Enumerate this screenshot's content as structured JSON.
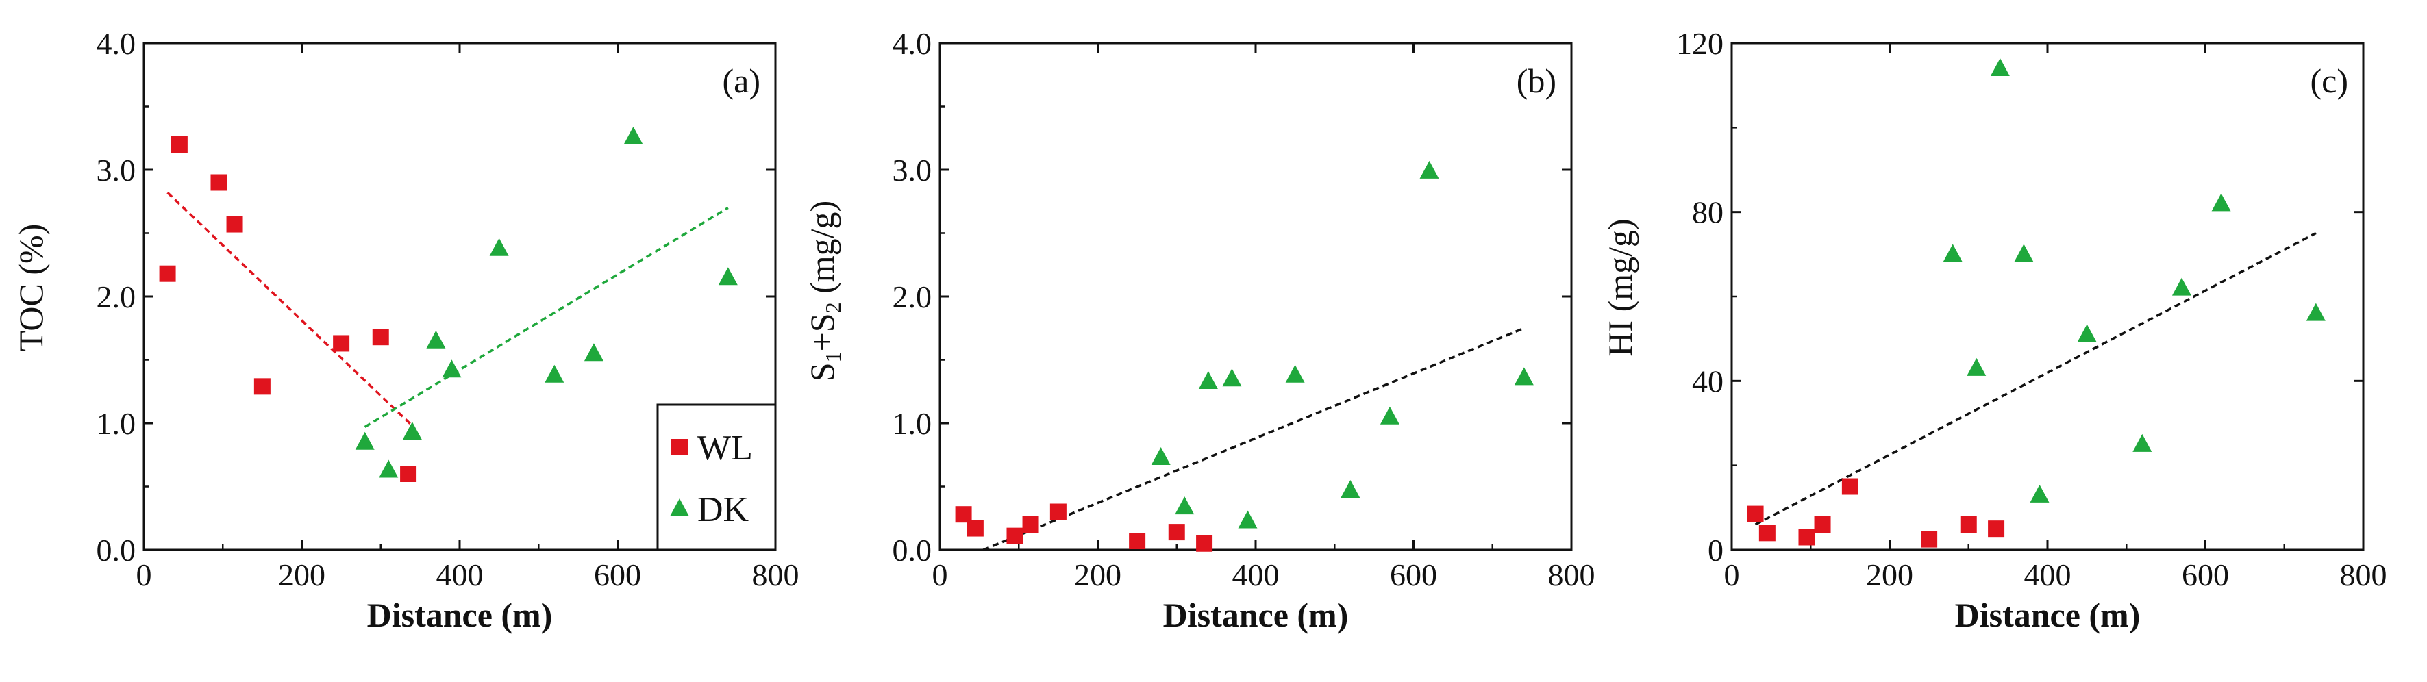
{
  "chart_data": [
    {
      "type": "scatter",
      "panel_label": "(a)",
      "xlabel": "Distance (m)",
      "ylabel": "TOC (%)",
      "xlim": [
        0,
        800
      ],
      "ylim": [
        0,
        4.0
      ],
      "xticks": [
        "0",
        "200",
        "400",
        "600",
        "800"
      ],
      "yticks": [
        "0.0",
        "1.0",
        "2.0",
        "3.0",
        "4.0"
      ],
      "legend": {
        "position": "bottom-right",
        "entries": [
          "WL",
          "DK"
        ]
      },
      "series": [
        {
          "name": "WL",
          "marker": "square",
          "color": "#e0141e",
          "x": [
            30,
            45,
            95,
            115,
            150,
            250,
            300,
            335
          ],
          "y": [
            2.18,
            3.2,
            2.9,
            2.57,
            1.29,
            1.63,
            1.68,
            0.6
          ]
        },
        {
          "name": "DK",
          "marker": "triangle",
          "color": "#1fa83c",
          "x": [
            280,
            310,
            340,
            370,
            390,
            450,
            520,
            570,
            620,
            740
          ],
          "y": [
            0.85,
            0.63,
            0.93,
            1.65,
            1.42,
            2.38,
            1.38,
            1.55,
            3.26,
            2.15
          ]
        }
      ],
      "trendlines": [
        {
          "series": "WL",
          "color": "#e0141e",
          "x": [
            30,
            340
          ],
          "y": [
            2.82,
            0.98
          ]
        },
        {
          "series": "DK",
          "color": "#1fa83c",
          "x": [
            280,
            740
          ],
          "y": [
            0.97,
            2.7
          ]
        }
      ]
    },
    {
      "type": "scatter",
      "panel_label": "(b)",
      "xlabel": "Distance (m)",
      "ylabel": "S1+S2 (mg/g)",
      "ylabel_parts": [
        "S",
        "1",
        "+S",
        "2",
        " (mg/g)"
      ],
      "xlim": [
        0,
        800
      ],
      "ylim": [
        0,
        4.0
      ],
      "xticks": [
        "0",
        "200",
        "400",
        "600",
        "800"
      ],
      "yticks": [
        "0.0",
        "1.0",
        "2.0",
        "3.0",
        "4.0"
      ],
      "series": [
        {
          "name": "WL",
          "marker": "square",
          "color": "#e0141e",
          "x": [
            30,
            45,
            95,
            115,
            150,
            250,
            300,
            335
          ],
          "y": [
            0.28,
            0.17,
            0.11,
            0.2,
            0.3,
            0.07,
            0.14,
            0.05
          ]
        },
        {
          "name": "DK",
          "marker": "triangle",
          "color": "#1fa83c",
          "x": [
            280,
            310,
            340,
            370,
            390,
            450,
            520,
            570,
            620,
            740
          ],
          "y": [
            0.73,
            0.34,
            1.33,
            1.35,
            0.23,
            1.38,
            0.47,
            1.05,
            2.99,
            1.36
          ]
        }
      ],
      "trendlines": [
        {
          "series": "all",
          "color": "#111111",
          "x": [
            55,
            740
          ],
          "y": [
            0.0,
            1.75
          ]
        }
      ]
    },
    {
      "type": "scatter",
      "panel_label": "(c)",
      "xlabel": "Distance (m)",
      "ylabel": "HI (mg/g)",
      "xlim": [
        0,
        800
      ],
      "ylim": [
        0,
        120
      ],
      "xticks": [
        "0",
        "200",
        "400",
        "600",
        "800"
      ],
      "yticks": [
        "0",
        "40",
        "80",
        "120"
      ],
      "series": [
        {
          "name": "WL",
          "marker": "square",
          "color": "#e0141e",
          "x": [
            30,
            45,
            95,
            115,
            150,
            250,
            300,
            335
          ],
          "y": [
            8.5,
            4,
            3,
            6,
            15,
            2.5,
            6,
            5
          ]
        },
        {
          "name": "DK",
          "marker": "triangle",
          "color": "#1fa83c",
          "x": [
            280,
            310,
            340,
            370,
            390,
            450,
            520,
            570,
            620,
            740
          ],
          "y": [
            70,
            43,
            114,
            70,
            13,
            51,
            25,
            62,
            82,
            56
          ]
        }
      ],
      "trendlines": [
        {
          "series": "all",
          "color": "#111111",
          "x": [
            30,
            740
          ],
          "y": [
            6,
            75
          ]
        }
      ]
    }
  ]
}
